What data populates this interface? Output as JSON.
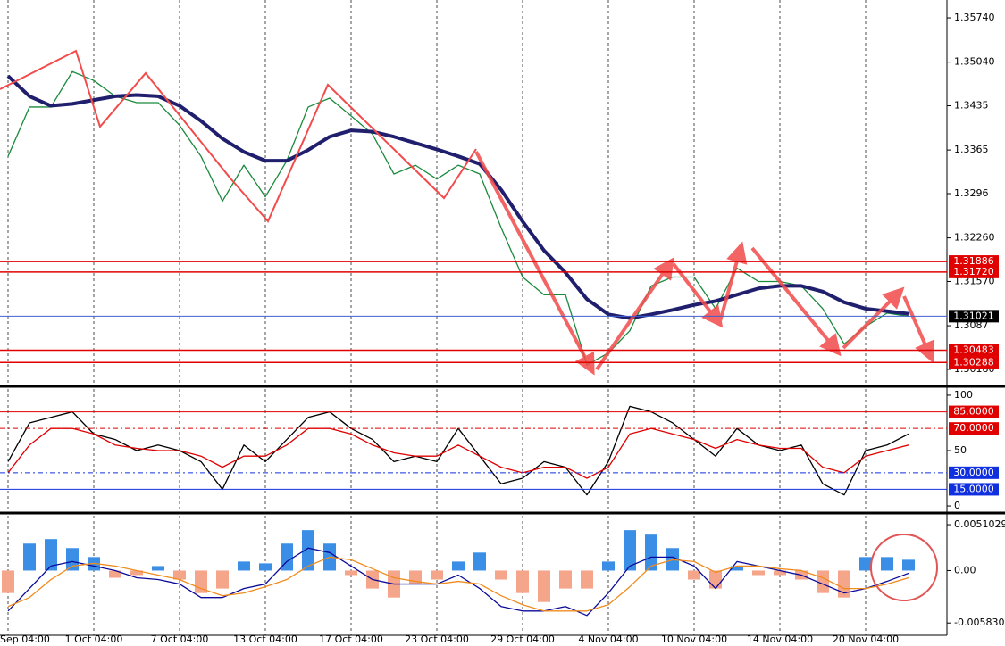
{
  "chart_data": [
    {
      "type": "line",
      "ylim": [
        1.29925,
        1.36023
      ],
      "yticks": [
        {
          "value": 1.3574,
          "label": "1.35740"
        },
        {
          "value": 1.3504,
          "label": "1.35040"
        },
        1.3435,
        1.3365,
        1.3296,
        {
          "value": 1.3226,
          "label": "1.32260"
        },
        {
          "value": 1.3157,
          "label": "1.31570"
        },
        1.3087,
        {
          "value": 1.3018,
          "label": "1.30180"
        }
      ],
      "levels": [
        {
          "value": 1.31886,
          "label": "1.31886",
          "color": "#e00000"
        },
        {
          "value": 1.3172,
          "label": "1.31720",
          "color": "#e00000"
        },
        {
          "value": 1.31021,
          "label": "1.31021",
          "color": "#000000",
          "line_color": "#4060d0"
        },
        {
          "value": 1.30483,
          "label": "1.30483",
          "color": "#e00000"
        },
        {
          "value": 1.30288,
          "label": "1.30288",
          "color": "#e00000"
        }
      ],
      "series": [
        {
          "color": "#1a8a3c",
          "values": [
            1.3355,
            1.3433,
            1.3433,
            1.3489,
            1.3475,
            1.345,
            1.344,
            1.344,
            1.3404,
            1.3355,
            1.3284,
            1.3341,
            1.3291,
            1.3348,
            1.3433,
            1.3447,
            1.3419,
            1.339,
            1.3327,
            1.3341,
            1.3319,
            1.3341,
            1.3327,
            1.3242,
            1.3164,
            1.3136,
            1.3136,
            1.3025,
            1.3044,
            1.3079,
            1.315,
            1.3164,
            1.3164,
            1.3114,
            1.3178,
            1.3157,
            1.3157,
            1.315,
            1.3114,
            1.3058,
            1.3086,
            1.3107,
            1.3102
          ]
        },
        {
          "color": "#1f1f6e",
          "values": [
            1.3482,
            1.345,
            1.3435,
            1.3438,
            1.3444,
            1.345,
            1.3452,
            1.345,
            1.3435,
            1.3411,
            1.3383,
            1.3362,
            1.3348,
            1.3348,
            1.3365,
            1.3386,
            1.3396,
            1.3394,
            1.3386,
            1.3376,
            1.3366,
            1.3355,
            1.3343,
            1.3302,
            1.3252,
            1.3206,
            1.3171,
            1.3129,
            1.3105,
            1.3099,
            1.3105,
            1.3112,
            1.312,
            1.3126,
            1.3136,
            1.3146,
            1.315,
            1.315,
            1.3141,
            1.3124,
            1.3114,
            1.311,
            1.3106
          ]
        }
      ]
    },
    {
      "type": "line",
      "ylim": [
        -5.6,
        105.6
      ],
      "yticks": [
        100,
        50,
        0
      ],
      "levels": [
        {
          "value": 85,
          "label": "85.0000",
          "color": "#e00000"
        },
        {
          "value": 70,
          "label": "70.0000",
          "color": "#e00000"
        },
        {
          "value": 30,
          "label": "30.0000",
          "color": "#1030e0"
        },
        {
          "value": 15,
          "label": "15.0000",
          "color": "#1030e0"
        }
      ],
      "series": [
        {
          "color": "#000000",
          "values": [
            40,
            75,
            80,
            85,
            65,
            60,
            50,
            55,
            50,
            40,
            15,
            55,
            40,
            60,
            80,
            85,
            70,
            60,
            40,
            45,
            40,
            70,
            45,
            20,
            25,
            40,
            35,
            10,
            40,
            90,
            85,
            75,
            60,
            45,
            70,
            55,
            50,
            55,
            20,
            10,
            50,
            55,
            65
          ]
        },
        {
          "color": "#e00000",
          "values": [
            30,
            55,
            70,
            70,
            65,
            55,
            52,
            50,
            50,
            45,
            35,
            45,
            45,
            55,
            70,
            70,
            65,
            55,
            48,
            45,
            45,
            55,
            45,
            35,
            30,
            35,
            35,
            25,
            35,
            65,
            70,
            65,
            60,
            52,
            60,
            55,
            52,
            52,
            35,
            30,
            45,
            50,
            55
          ]
        }
      ]
    },
    {
      "type": "bar",
      "ylim": [
        -0.0072,
        0.0061
      ],
      "yticks": [
        0.0051029,
        {
          "value": 0,
          "label": "0.00"
        },
        -0.0058307
      ],
      "color_pos": "#3a8ee6",
      "color_neg": "#f4a58a",
      "categories": [
        "Sep 04:00",
        null,
        null,
        null,
        "1 Oct 04:00",
        null,
        null,
        null,
        "7 Oct 04:00",
        null,
        null,
        null,
        "13 Oct 04:00",
        null,
        null,
        null,
        "17 Oct 04:00",
        null,
        null,
        null,
        "23 Oct 04:00",
        null,
        null,
        null,
        "29 Oct 04:00",
        null,
        null,
        null,
        "4 Nov 04:00",
        null,
        null,
        null,
        "10 Nov 04:00",
        null,
        null,
        null,
        "14 Nov 04:00",
        null,
        null,
        null,
        "20 Nov 04:00",
        null,
        null
      ],
      "values": [
        -0.0025,
        0.003,
        0.0035,
        0.0025,
        0.0015,
        -0.0008,
        -0.0005,
        0.0005,
        -0.001,
        -0.0025,
        -0.002,
        0.001,
        0.0008,
        0.003,
        0.0045,
        0.003,
        -0.0005,
        -0.002,
        -0.003,
        -0.0015,
        -0.001,
        0.001,
        0.002,
        -0.001,
        -0.0025,
        -0.0035,
        -0.002,
        -0.002,
        0.001,
        0.0045,
        0.004,
        0.0025,
        -0.001,
        -0.002,
        0.0005,
        -0.0005,
        -0.0005,
        -0.001,
        -0.0025,
        -0.003,
        0.0015,
        0.0015,
        0.0012
      ],
      "series": [
        {
          "color": "#0a0a9a",
          "values": [
            -0.0045,
            -0.002,
            0.0005,
            0.001,
            0.0005,
            0,
            -0.0008,
            -0.001,
            -0.0015,
            -0.003,
            -0.003,
            -0.002,
            -0.0015,
            0.001,
            0.0025,
            0.002,
            0.0005,
            -0.001,
            -0.0015,
            -0.0015,
            -0.0015,
            -0.0005,
            -0.002,
            -0.004,
            -0.0045,
            -0.0045,
            -0.004,
            -0.005,
            -0.0025,
            0.0005,
            0.0015,
            0.0015,
            0.0005,
            -0.002,
            0.001,
            0.0005,
            0,
            -0.0005,
            -0.0015,
            -0.0025,
            -0.002,
            -0.0012,
            -0.0003
          ]
        },
        {
          "color": "#f08c1e",
          "values": [
            -0.004,
            -0.003,
            -0.001,
            0.0005,
            0.0008,
            0.0005,
            0,
            -0.0005,
            -0.001,
            -0.002,
            -0.0028,
            -0.0025,
            -0.0018,
            -0.001,
            0.0005,
            0.0015,
            0.0012,
            0.0002,
            -0.0008,
            -0.0012,
            -0.0015,
            -0.0012,
            -0.0015,
            -0.0028,
            -0.0038,
            -0.0045,
            -0.0045,
            -0.0045,
            -0.0038,
            -0.0018,
            0.0005,
            0.0012,
            0.001,
            -0.0002,
            0.0005,
            0.0005,
            0.0002,
            0,
            -0.0008,
            -0.002,
            -0.002,
            -0.0015,
            -0.0008
          ]
        }
      ]
    }
  ]
}
